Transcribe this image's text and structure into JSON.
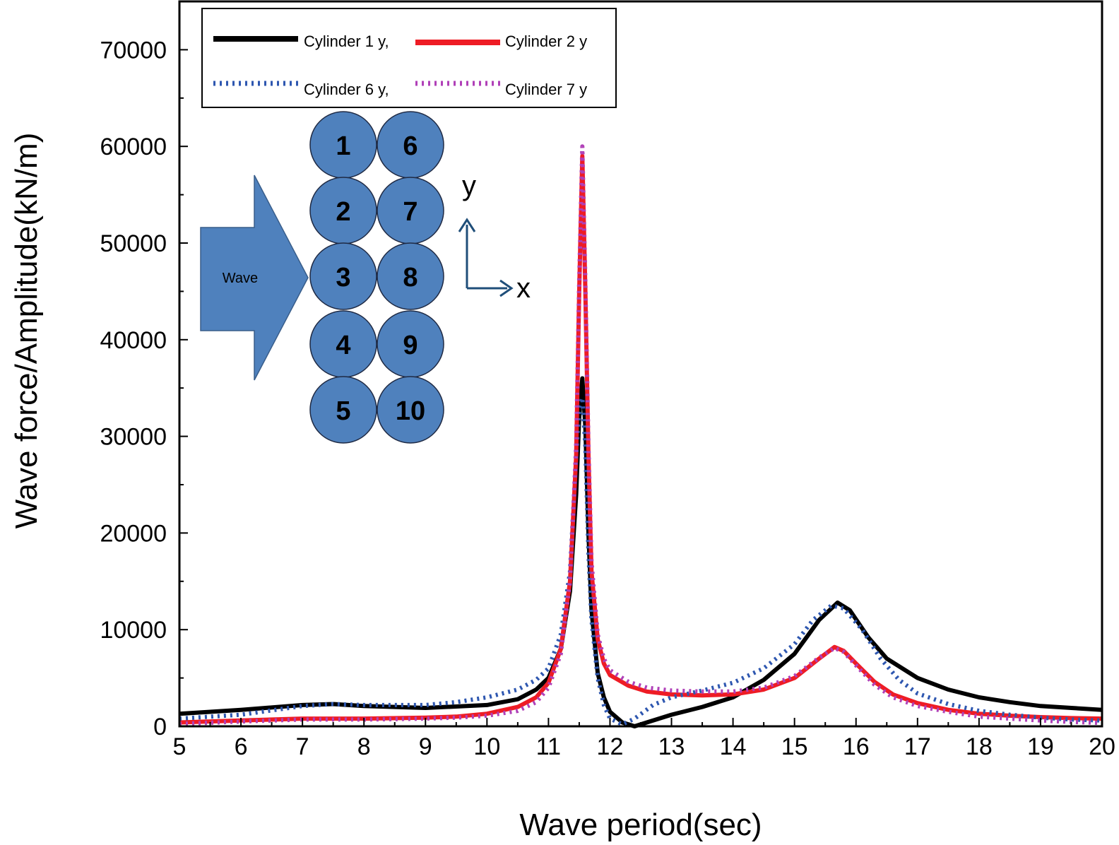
{
  "chart_data": {
    "type": "line",
    "xlabel": "Wave period(sec)",
    "ylabel": "Wave force/Amplitude(kN/m)",
    "xlim": [
      5,
      20
    ],
    "ylim": [
      0,
      75000
    ],
    "xticks": [
      5,
      6,
      7,
      8,
      9,
      10,
      11,
      12,
      13,
      14,
      15,
      16,
      17,
      18,
      19,
      20
    ],
    "yticks": [
      0,
      10000,
      20000,
      30000,
      40000,
      50000,
      60000,
      70000
    ],
    "grid": false,
    "legend_position": "top-left",
    "series": [
      {
        "name": "Cylinder 1 y,",
        "color": "#000000",
        "style": "solid",
        "points": [
          [
            5,
            1300
          ],
          [
            6,
            1700
          ],
          [
            7,
            2200
          ],
          [
            7.5,
            2300
          ],
          [
            8,
            2100
          ],
          [
            9,
            1900
          ],
          [
            10,
            2200
          ],
          [
            10.5,
            2800
          ],
          [
            10.8,
            3800
          ],
          [
            11,
            5000
          ],
          [
            11.2,
            8000
          ],
          [
            11.35,
            14000
          ],
          [
            11.45,
            24000
          ],
          [
            11.5,
            32000
          ],
          [
            11.55,
            36000
          ],
          [
            11.6,
            31000
          ],
          [
            11.65,
            20000
          ],
          [
            11.7,
            12000
          ],
          [
            11.8,
            5500
          ],
          [
            11.9,
            3000
          ],
          [
            12,
            1500
          ],
          [
            12.2,
            400
          ],
          [
            12.4,
            0
          ],
          [
            12.6,
            400
          ],
          [
            13,
            1200
          ],
          [
            13.5,
            2000
          ],
          [
            14,
            3000
          ],
          [
            14.5,
            4800
          ],
          [
            15,
            7500
          ],
          [
            15.4,
            11000
          ],
          [
            15.7,
            12800
          ],
          [
            15.9,
            12000
          ],
          [
            16.2,
            9200
          ],
          [
            16.5,
            7000
          ],
          [
            17,
            5000
          ],
          [
            17.5,
            3800
          ],
          [
            18,
            3000
          ],
          [
            18.5,
            2500
          ],
          [
            19,
            2100
          ],
          [
            19.5,
            1900
          ],
          [
            20,
            1700
          ]
        ]
      },
      {
        "name": "Cylinder 2 y",
        "color": "#ee1c25",
        "style": "solid",
        "points": [
          [
            5,
            400
          ],
          [
            6,
            600
          ],
          [
            7,
            800
          ],
          [
            8,
            800
          ],
          [
            9,
            900
          ],
          [
            9.5,
            1000
          ],
          [
            10,
            1300
          ],
          [
            10.5,
            2000
          ],
          [
            10.8,
            3000
          ],
          [
            11,
            4500
          ],
          [
            11.2,
            8000
          ],
          [
            11.35,
            15000
          ],
          [
            11.45,
            28000
          ],
          [
            11.5,
            45000
          ],
          [
            11.55,
            59000
          ],
          [
            11.6,
            45000
          ],
          [
            11.65,
            28000
          ],
          [
            11.7,
            16000
          ],
          [
            11.8,
            9000
          ],
          [
            11.9,
            6500
          ],
          [
            12,
            5300
          ],
          [
            12.3,
            4200
          ],
          [
            12.6,
            3600
          ],
          [
            13,
            3300
          ],
          [
            13.5,
            3200
          ],
          [
            14,
            3300
          ],
          [
            14.5,
            3800
          ],
          [
            15,
            5000
          ],
          [
            15.4,
            7000
          ],
          [
            15.65,
            8200
          ],
          [
            15.8,
            7800
          ],
          [
            16,
            6500
          ],
          [
            16.3,
            4600
          ],
          [
            16.6,
            3300
          ],
          [
            17,
            2400
          ],
          [
            17.5,
            1700
          ],
          [
            18,
            1300
          ],
          [
            18.5,
            1100
          ],
          [
            19,
            950
          ],
          [
            19.5,
            850
          ],
          [
            20,
            800
          ]
        ]
      },
      {
        "name": "Cylinder 6 y,",
        "color": "#2e57b0",
        "style": "dotted",
        "points": [
          [
            5,
            800
          ],
          [
            6,
            1200
          ],
          [
            7,
            2100
          ],
          [
            7.5,
            2300
          ],
          [
            8,
            2200
          ],
          [
            9,
            2200
          ],
          [
            9.5,
            2500
          ],
          [
            10,
            3000
          ],
          [
            10.5,
            3800
          ],
          [
            10.8,
            4800
          ],
          [
            11,
            6000
          ],
          [
            11.2,
            9500
          ],
          [
            11.35,
            16000
          ],
          [
            11.45,
            28000
          ],
          [
            11.5,
            33000
          ],
          [
            11.55,
            34000
          ],
          [
            11.6,
            29000
          ],
          [
            11.65,
            18000
          ],
          [
            11.7,
            11000
          ],
          [
            11.8,
            5000
          ],
          [
            11.9,
            2200
          ],
          [
            12,
            800
          ],
          [
            12.2,
            200
          ],
          [
            12.4,
            800
          ],
          [
            12.7,
            2200
          ],
          [
            13,
            3000
          ],
          [
            13.5,
            3700
          ],
          [
            14,
            4500
          ],
          [
            14.5,
            6000
          ],
          [
            15,
            8500
          ],
          [
            15.3,
            11000
          ],
          [
            15.6,
            12500
          ],
          [
            15.8,
            12200
          ],
          [
            16.1,
            10000
          ],
          [
            16.4,
            7000
          ],
          [
            16.7,
            4800
          ],
          [
            17,
            3400
          ],
          [
            17.5,
            2300
          ],
          [
            18,
            1600
          ],
          [
            18.5,
            1200
          ],
          [
            19,
            900
          ],
          [
            19.5,
            700
          ],
          [
            20,
            600
          ]
        ]
      },
      {
        "name": "Cylinder 7 y",
        "color": "#b040b8",
        "style": "dotted",
        "points": [
          [
            5,
            250
          ],
          [
            6,
            500
          ],
          [
            7,
            700
          ],
          [
            8,
            700
          ],
          [
            9,
            800
          ],
          [
            9.5,
            900
          ],
          [
            10,
            1100
          ],
          [
            10.5,
            1600
          ],
          [
            10.8,
            2500
          ],
          [
            11,
            4000
          ],
          [
            11.2,
            7500
          ],
          [
            11.35,
            15000
          ],
          [
            11.45,
            29000
          ],
          [
            11.5,
            46000
          ],
          [
            11.55,
            60000
          ],
          [
            11.6,
            46000
          ],
          [
            11.65,
            29000
          ],
          [
            11.7,
            17000
          ],
          [
            11.8,
            9500
          ],
          [
            11.9,
            7000
          ],
          [
            12,
            5800
          ],
          [
            12.3,
            4600
          ],
          [
            12.6,
            4000
          ],
          [
            13,
            3700
          ],
          [
            13.5,
            3600
          ],
          [
            14,
            3600
          ],
          [
            14.5,
            4000
          ],
          [
            15,
            5200
          ],
          [
            15.4,
            7100
          ],
          [
            15.65,
            8100
          ],
          [
            15.8,
            7700
          ],
          [
            16,
            6300
          ],
          [
            16.3,
            4300
          ],
          [
            16.6,
            3000
          ],
          [
            17,
            2100
          ],
          [
            17.5,
            1500
          ],
          [
            18,
            1000
          ],
          [
            18.5,
            800
          ],
          [
            19,
            600
          ],
          [
            19.5,
            450
          ],
          [
            20,
            350
          ]
        ]
      }
    ]
  },
  "inset": {
    "wave_label": "Wave",
    "cylinders": [
      [
        "1",
        "6"
      ],
      [
        "2",
        "7"
      ],
      [
        "3",
        "8"
      ],
      [
        "4",
        "9"
      ],
      [
        "5",
        "10"
      ]
    ],
    "axis_y_label": "y",
    "axis_x_label": "x",
    "cylinder_color": "#4f81bd",
    "arrow_color": "#4f81bd",
    "axes_color": "#1f4e79"
  }
}
